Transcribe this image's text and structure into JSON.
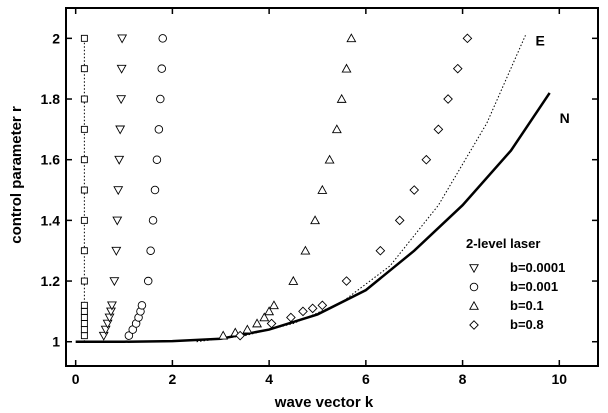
{
  "chart_data": {
    "type": "scatter",
    "xlabel": "wave vector k",
    "ylabel": "control parameter r",
    "xlim": [
      -0.2,
      10.8
    ],
    "ylim": [
      0.92,
      2.1
    ],
    "xticks": [
      0,
      2,
      4,
      6,
      8,
      10
    ],
    "yticks": [
      1,
      1.2,
      1.4,
      1.6,
      1.8,
      2
    ],
    "legend_title": "2-level laser",
    "legend_position": "bottom-right",
    "series": [
      {
        "name": "b=0.0001",
        "marker": "triangle-down",
        "points": [
          [
            0.58,
            1.02
          ],
          [
            0.62,
            1.04
          ],
          [
            0.66,
            1.06
          ],
          [
            0.7,
            1.08
          ],
          [
            0.73,
            1.1
          ],
          [
            0.75,
            1.12
          ],
          [
            0.8,
            1.2
          ],
          [
            0.84,
            1.3
          ],
          [
            0.86,
            1.4
          ],
          [
            0.88,
            1.5
          ],
          [
            0.9,
            1.6
          ],
          [
            0.92,
            1.7
          ],
          [
            0.94,
            1.8
          ],
          [
            0.95,
            1.9
          ],
          [
            0.96,
            2.0
          ]
        ]
      },
      {
        "name": "b=0.001",
        "marker": "circle",
        "points": [
          [
            1.1,
            1.02
          ],
          [
            1.18,
            1.04
          ],
          [
            1.25,
            1.06
          ],
          [
            1.3,
            1.08
          ],
          [
            1.34,
            1.1
          ],
          [
            1.37,
            1.12
          ],
          [
            1.5,
            1.2
          ],
          [
            1.55,
            1.3
          ],
          [
            1.6,
            1.4
          ],
          [
            1.64,
            1.5
          ],
          [
            1.68,
            1.6
          ],
          [
            1.72,
            1.7
          ],
          [
            1.75,
            1.8
          ],
          [
            1.78,
            1.9
          ],
          [
            1.8,
            2.0
          ]
        ]
      },
      {
        "name": "b=0.1",
        "marker": "triangle-up",
        "points": [
          [
            3.05,
            1.02
          ],
          [
            3.3,
            1.03
          ],
          [
            3.55,
            1.04
          ],
          [
            3.75,
            1.06
          ],
          [
            3.9,
            1.08
          ],
          [
            4.0,
            1.1
          ],
          [
            4.1,
            1.12
          ],
          [
            4.5,
            1.2
          ],
          [
            4.75,
            1.3
          ],
          [
            4.95,
            1.4
          ],
          [
            5.1,
            1.5
          ],
          [
            5.25,
            1.6
          ],
          [
            5.4,
            1.7
          ],
          [
            5.5,
            1.8
          ],
          [
            5.6,
            1.9
          ],
          [
            5.7,
            2.0
          ]
        ]
      },
      {
        "name": "b=0.8",
        "marker": "diamond",
        "points": [
          [
            3.4,
            1.02
          ],
          [
            4.05,
            1.06
          ],
          [
            4.45,
            1.08
          ],
          [
            4.7,
            1.1
          ],
          [
            4.9,
            1.11
          ],
          [
            5.1,
            1.12
          ],
          [
            5.6,
            1.2
          ],
          [
            6.3,
            1.3
          ],
          [
            6.7,
            1.4
          ],
          [
            7.0,
            1.5
          ],
          [
            7.25,
            1.6
          ],
          [
            7.5,
            1.7
          ],
          [
            7.7,
            1.8
          ],
          [
            7.9,
            1.9
          ],
          [
            8.1,
            2.0
          ]
        ]
      },
      {
        "name": "",
        "marker": "square",
        "points": [
          [
            0.18,
            1.02
          ],
          [
            0.18,
            1.04
          ],
          [
            0.18,
            1.06
          ],
          [
            0.18,
            1.08
          ],
          [
            0.18,
            1.1
          ],
          [
            0.18,
            1.12
          ],
          [
            0.18,
            1.2
          ],
          [
            0.18,
            1.3
          ],
          [
            0.18,
            1.4
          ],
          [
            0.18,
            1.5
          ],
          [
            0.18,
            1.6
          ],
          [
            0.18,
            1.7
          ],
          [
            0.18,
            1.8
          ],
          [
            0.18,
            1.9
          ],
          [
            0.18,
            2.0
          ]
        ]
      }
    ],
    "curves": [
      {
        "label": "N",
        "style": "solid",
        "points": [
          [
            0,
            1.0
          ],
          [
            1,
            1.0
          ],
          [
            2,
            1.002
          ],
          [
            3,
            1.01
          ],
          [
            4,
            1.04
          ],
          [
            5,
            1.09
          ],
          [
            6,
            1.17
          ],
          [
            7,
            1.3
          ],
          [
            8,
            1.45
          ],
          [
            9,
            1.63
          ],
          [
            9.8,
            1.82
          ]
        ]
      },
      {
        "label": "E",
        "style": "dotted",
        "points": [
          [
            2.5,
            1.0
          ],
          [
            3.5,
            1.02
          ],
          [
            4.5,
            1.06
          ],
          [
            5.5,
            1.13
          ],
          [
            6.5,
            1.25
          ],
          [
            7.5,
            1.45
          ],
          [
            8.5,
            1.72
          ],
          [
            9.3,
            2.01
          ]
        ]
      },
      {
        "label": "",
        "style": "dotted",
        "points": [
          [
            0.18,
            1.0
          ],
          [
            0.18,
            2.0
          ]
        ]
      }
    ]
  }
}
